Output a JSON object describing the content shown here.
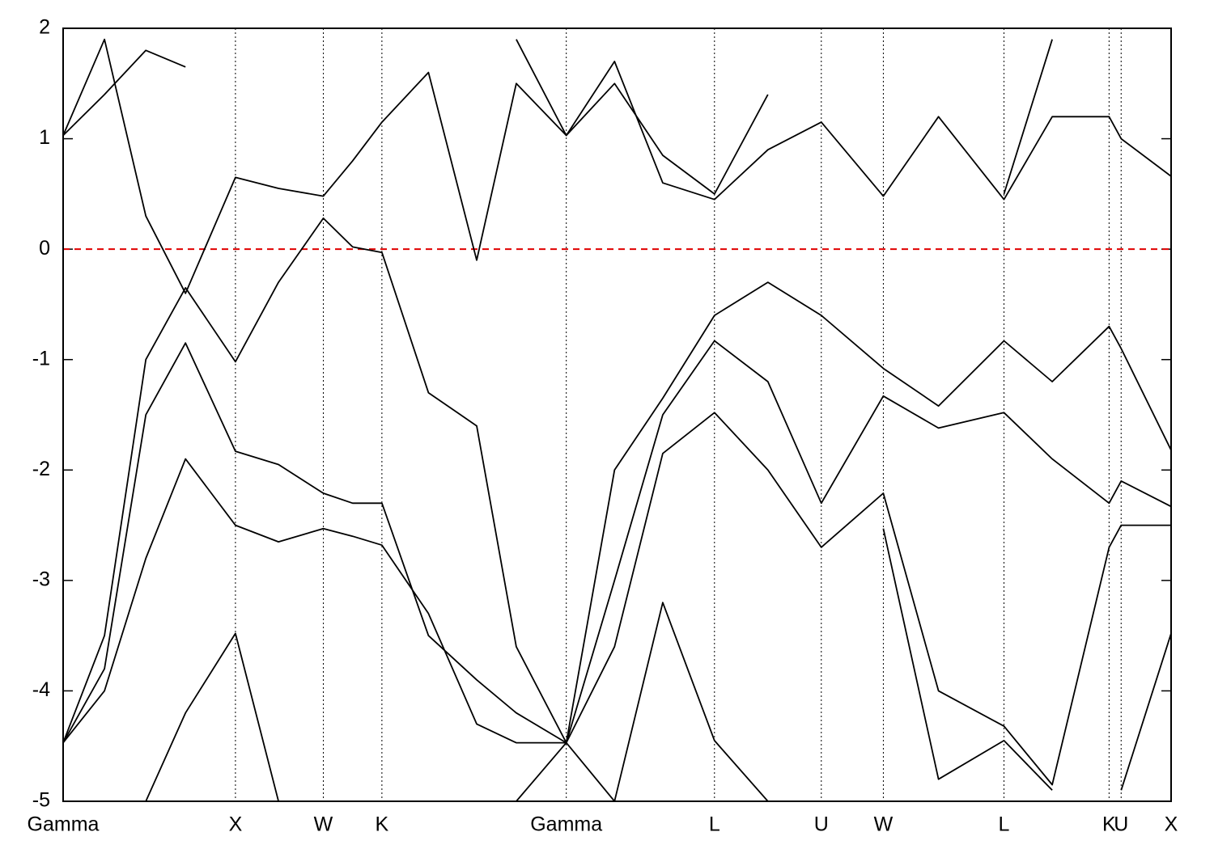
{
  "chart_data": {
    "type": "line",
    "x": [
      0,
      0.24,
      0.48,
      0.71,
      1,
      1.25,
      1.51,
      1.68,
      1.85,
      2.12,
      2.4,
      2.63,
      2.92,
      3.2,
      3.48,
      3.78,
      4.09,
      4.4,
      4.76,
      5.08,
      5.46,
      5.74,
      6.07,
      6.14,
      6.43
    ],
    "xlim": [
      0,
      6.43
    ],
    "xticks": [
      {
        "value": 0,
        "label": "Gamma"
      },
      {
        "value": 1,
        "label": "X"
      },
      {
        "value": 1.51,
        "label": "W"
      },
      {
        "value": 1.85,
        "label": "K"
      },
      {
        "value": 2.92,
        "label": "Gamma"
      },
      {
        "value": 3.78,
        "label": "L"
      },
      {
        "value": 4.4,
        "label": "U"
      },
      {
        "value": 4.76,
        "label": "W"
      },
      {
        "value": 5.46,
        "label": "L"
      },
      {
        "value": 6.07,
        "label": "K"
      },
      {
        "value": 6.14,
        "label": "U"
      },
      {
        "value": 6.43,
        "label": "X"
      }
    ],
    "ylim": [
      -5,
      2
    ],
    "yticks": [
      -5,
      -4,
      -3,
      -2,
      -1,
      0,
      1,
      2
    ],
    "xgrid": true,
    "fermi_level": 0,
    "fermi_color": "#e00000",
    "series": [
      {
        "color": "#000000",
        "values": [
          null,
          null,
          -5,
          -4.2,
          -3.48,
          -5,
          null,
          null,
          null,
          null,
          null,
          -5,
          -4.47,
          -5,
          -3.2,
          -4.45,
          -5,
          null,
          -2.53,
          -4.8,
          -4.45,
          -4.9,
          null,
          -4.9,
          -3.48
        ]
      },
      {
        "color": "#000000",
        "values": [
          -4.47,
          -4.0,
          -2.8,
          -1.9,
          -2.5,
          -2.65,
          -2.53,
          -2.6,
          -2.68,
          -3.3,
          -4.3,
          -4.47,
          -4.47,
          -3.6,
          -1.85,
          -1.48,
          -2.0,
          -2.7,
          -2.21,
          -4.0,
          -4.32,
          -4.85,
          -2.7,
          -2.5,
          -2.5
        ]
      },
      {
        "color": "#000000",
        "values": [
          -4.47,
          -3.8,
          -1.5,
          -0.85,
          -1.83,
          -1.95,
          -2.21,
          -2.3,
          -2.3,
          -3.5,
          -3.9,
          -4.2,
          -4.47,
          -3.0,
          -1.5,
          -0.83,
          -1.2,
          -2.3,
          -1.33,
          -1.62,
          -1.48,
          -1.9,
          -2.3,
          -2.1,
          -2.33
        ]
      },
      {
        "color": "#000000",
        "values": [
          -4.47,
          -3.5,
          -1.0,
          -0.35,
          -1.02,
          -0.3,
          0.28,
          0.02,
          -0.03,
          -1.3,
          -1.6,
          -3.6,
          -4.47,
          -2.0,
          -1.35,
          -0.6,
          -0.3,
          -0.6,
          -1.08,
          -1.42,
          -0.83,
          -1.2,
          -0.7,
          -0.9,
          -1.82
        ]
      },
      {
        "color": "#000000",
        "values": [
          1.03,
          1.9,
          0.3,
          -0.4,
          0.65,
          0.55,
          0.48,
          0.8,
          1.15,
          1.6,
          -0.1,
          1.5,
          1.03,
          1.7,
          0.6,
          0.45,
          0.9,
          1.15,
          0.48,
          1.2,
          0.45,
          1.2,
          1.2,
          1.0,
          0.66
        ]
      },
      {
        "color": "#000000",
        "values": [
          1.03,
          1.4,
          1.8,
          1.65,
          null,
          null,
          null,
          null,
          null,
          null,
          null,
          1.9,
          1.03,
          1.5,
          0.85,
          0.5,
          1.4,
          null,
          null,
          null,
          0.5,
          1.9,
          null,
          null,
          null
        ]
      }
    ]
  }
}
